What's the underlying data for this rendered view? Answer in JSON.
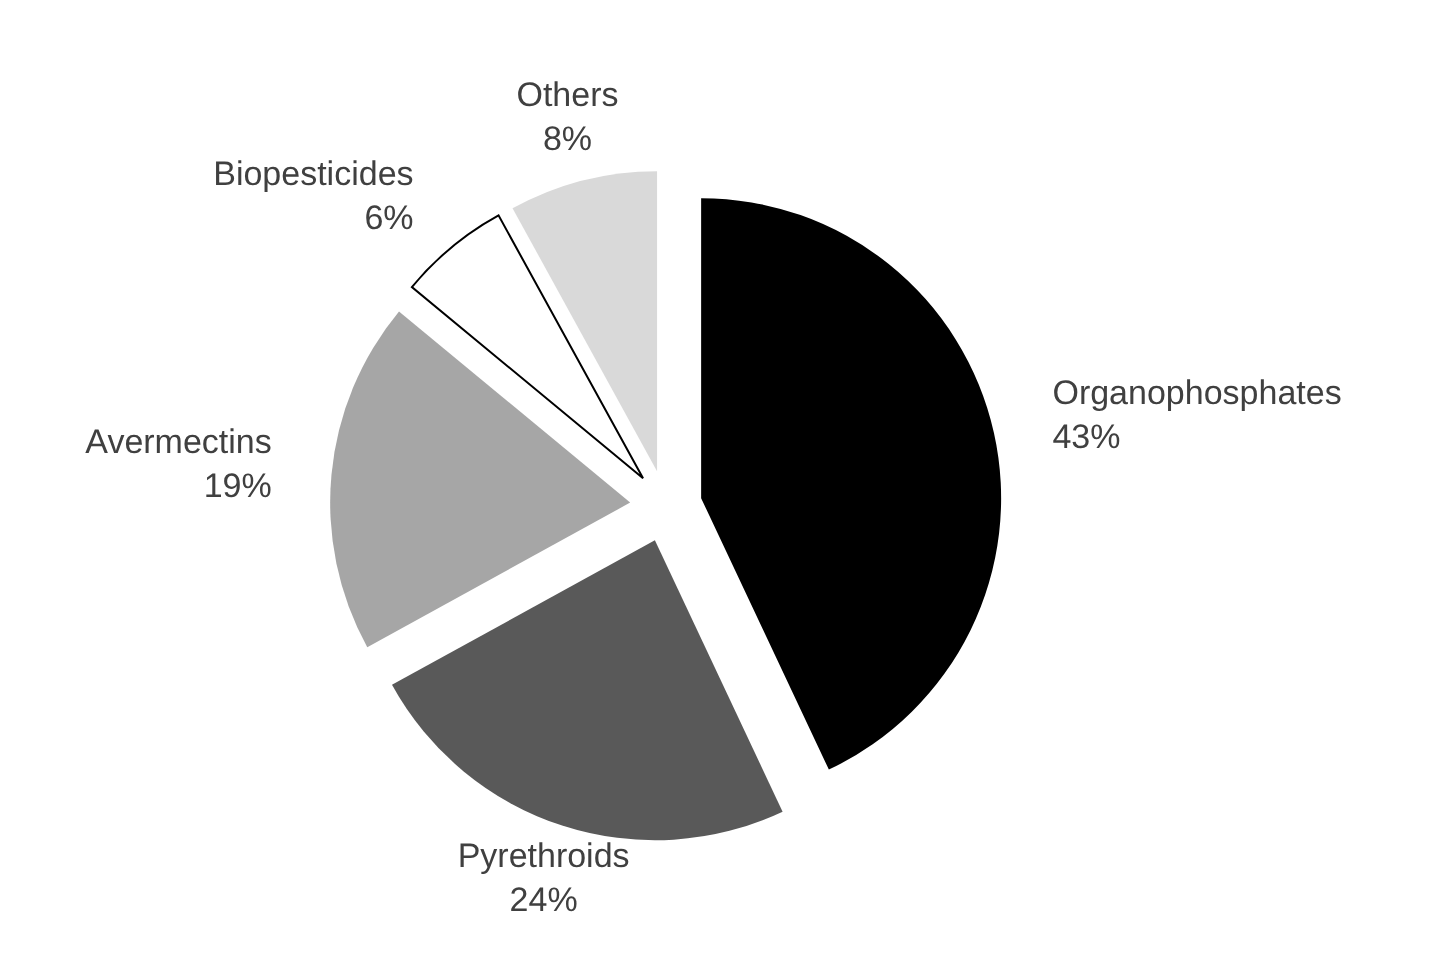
{
  "chart_data": {
    "type": "pie",
    "categories": [
      "Organophosphates",
      "Pyrethroids",
      "Avermectins",
      "Biopesticides",
      "Others"
    ],
    "values": [
      43,
      24,
      19,
      6,
      8
    ],
    "value_labels": [
      "43%",
      "24%",
      "19%",
      "6%",
      "8%"
    ],
    "colors": [
      "#000000",
      "#595959",
      "#a6a6a6",
      "#ffffff",
      "#d9d9d9"
    ],
    "legend": false
  }
}
